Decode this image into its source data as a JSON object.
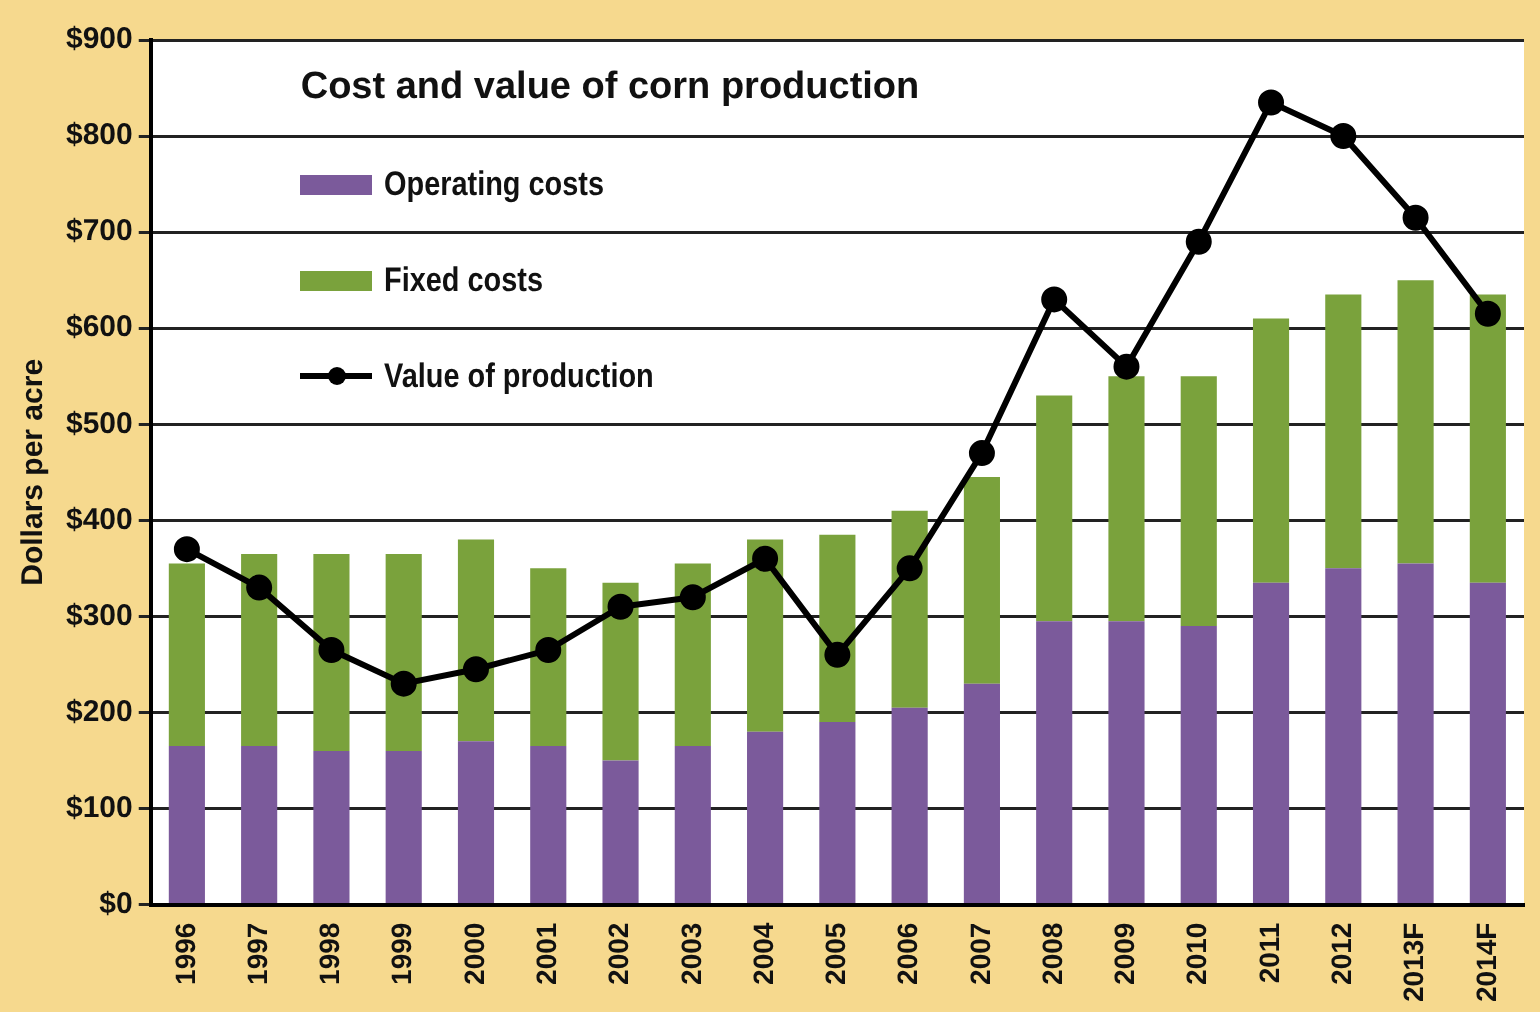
{
  "chart_data": {
    "type": "bar",
    "title": "Cost and value of corn production",
    "ylabel": "Dollars per acre",
    "categories": [
      "1996",
      "1997",
      "1998",
      "1999",
      "2000",
      "2001",
      "2002",
      "2003",
      "2004",
      "2005",
      "2006",
      "2007",
      "2008",
      "2009",
      "2010",
      "2011",
      "2012",
      "2013F",
      "2014F"
    ],
    "series": [
      {
        "name": "Operating costs",
        "color": "#7b5a9b",
        "values": [
          165,
          165,
          160,
          160,
          170,
          165,
          150,
          165,
          180,
          190,
          205,
          230,
          295,
          295,
          290,
          335,
          350,
          355,
          335
        ]
      },
      {
        "name": "Fixed costs",
        "color": "#7aa23c",
        "values": [
          190,
          200,
          205,
          205,
          210,
          185,
          185,
          190,
          200,
          195,
          205,
          215,
          235,
          255,
          260,
          275,
          285,
          295,
          300
        ]
      },
      {
        "name": "Value of production",
        "type": "line",
        "color": "#000000",
        "marker": "circle",
        "line_style": "solid",
        "values": [
          370,
          330,
          265,
          230,
          245,
          265,
          310,
          320,
          360,
          260,
          350,
          470,
          630,
          560,
          690,
          835,
          800,
          715,
          615
        ]
      }
    ],
    "stacked": true,
    "ylim": [
      0,
      900
    ],
    "yticks": [
      {
        "value": 0,
        "label": "$0"
      },
      {
        "value": 100,
        "label": "$100"
      },
      {
        "value": 200,
        "label": "$200"
      },
      {
        "value": 300,
        "label": "$300"
      },
      {
        "value": 400,
        "label": "$400"
      },
      {
        "value": 500,
        "label": "$500"
      },
      {
        "value": 600,
        "label": "$600"
      },
      {
        "value": 700,
        "label": "$700"
      },
      {
        "value": 800,
        "label": "$800"
      },
      {
        "value": 900,
        "label": "$900"
      }
    ],
    "grid": "y",
    "legend": "top left"
  }
}
